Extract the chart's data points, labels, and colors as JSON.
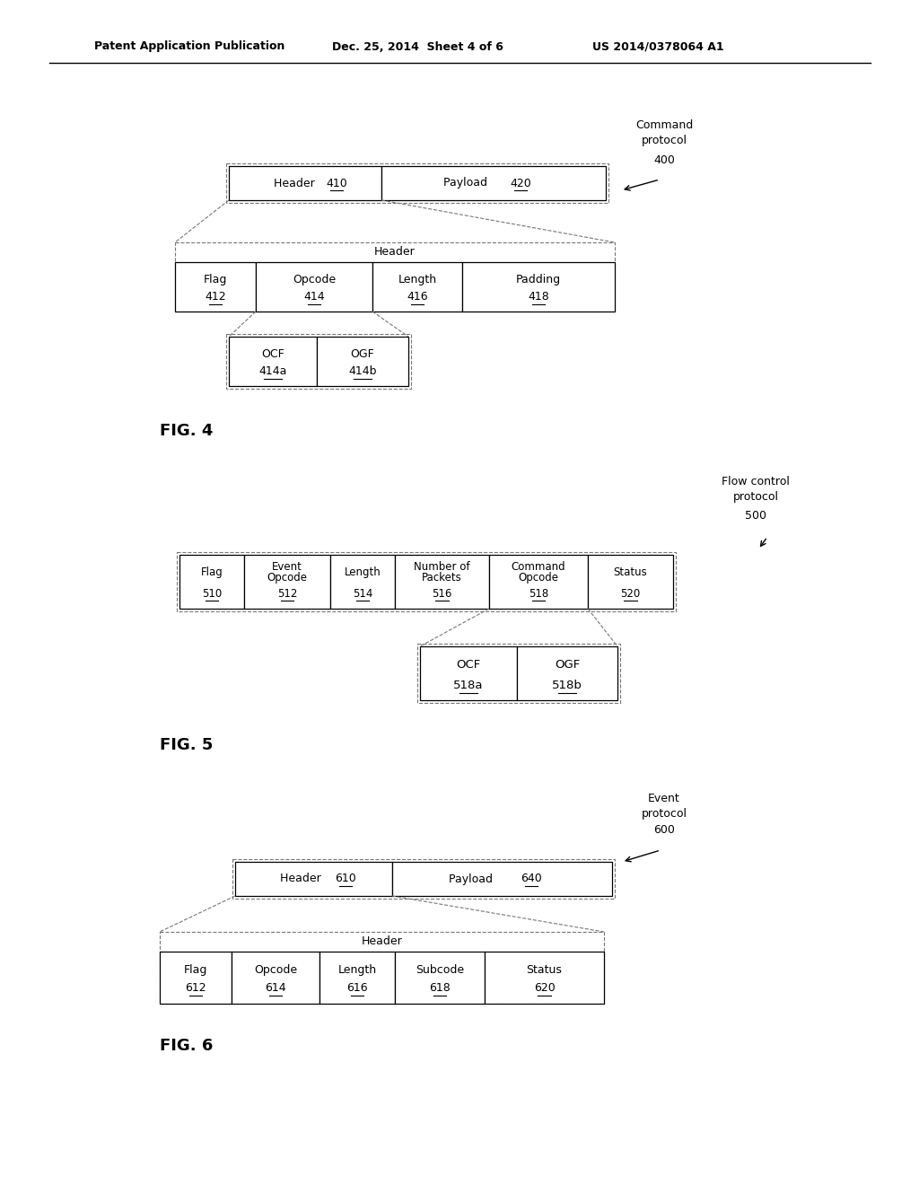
{
  "bg_color": "#ffffff",
  "line_color": "#000000",
  "dashed_color": "#777777",
  "header_text_left": "Patent Application Publication",
  "header_text_mid": "Dec. 25, 2014  Sheet 4 of 6",
  "header_text_right": "US 2014/0378064 A1",
  "fig4_label": "FIG. 4",
  "fig5_label": "FIG. 5",
  "fig6_label": "FIG. 6",
  "fig4_annot": "Command\nprotocol\n400",
  "fig5_annot": "Flow control\nprotocol\n500",
  "fig6_annot": "Event\nprotocol\n600"
}
